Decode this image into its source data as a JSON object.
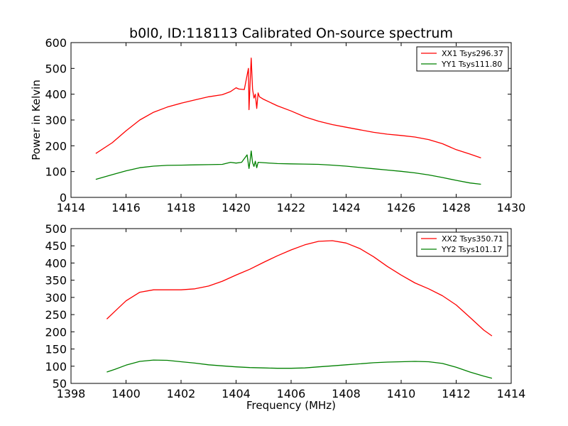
{
  "figure_title": "b0l0, ID:118113 Calibrated On-source spectrum",
  "colors": {
    "red": "#ff0000",
    "green": "#008000",
    "axes": "#000000",
    "background": "#ffffff"
  },
  "chart_data": [
    {
      "type": "line",
      "title": "b0l0, ID:118113 Calibrated On-source spectrum",
      "xlabel": "",
      "ylabel": "Power in Kelvin",
      "xlim": [
        1414,
        1430
      ],
      "ylim": [
        0,
        600
      ],
      "x_ticks": [
        "1414",
        "1416",
        "1418",
        "1420",
        "1422",
        "1424",
        "1426",
        "1428",
        "1430"
      ],
      "y_ticks": [
        "0",
        "100",
        "200",
        "300",
        "400",
        "500",
        "600"
      ],
      "grid": false,
      "legend": "top-right",
      "series": [
        {
          "name": "XX1 Tsys296.37",
          "color": "#ff0000",
          "x": [
            1414.9,
            1415.5,
            1416.0,
            1416.5,
            1417.0,
            1417.5,
            1418.0,
            1418.5,
            1419.0,
            1419.5,
            1419.8,
            1420.0,
            1420.1,
            1420.3,
            1420.45,
            1420.47,
            1420.5,
            1420.55,
            1420.6,
            1420.65,
            1420.7,
            1420.75,
            1420.8,
            1420.85,
            1421.0,
            1421.5,
            1422.0,
            1422.5,
            1423.0,
            1423.5,
            1424.0,
            1424.5,
            1425.0,
            1425.5,
            1426.0,
            1426.5,
            1427.0,
            1427.5,
            1428.0,
            1428.5,
            1428.9
          ],
          "y": [
            170,
            212,
            258,
            300,
            330,
            350,
            365,
            378,
            390,
            398,
            410,
            425,
            420,
            418,
            500,
            340,
            420,
            540,
            420,
            385,
            400,
            345,
            405,
            390,
            380,
            355,
            335,
            312,
            295,
            282,
            272,
            262,
            252,
            245,
            240,
            234,
            224,
            208,
            185,
            168,
            153
          ]
        },
        {
          "name": "YY1 Tsys111.80",
          "color": "#008000",
          "x": [
            1414.9,
            1415.5,
            1416.0,
            1416.5,
            1417.0,
            1417.5,
            1418.0,
            1418.5,
            1419.0,
            1419.5,
            1419.8,
            1420.0,
            1420.2,
            1420.4,
            1420.47,
            1420.5,
            1420.55,
            1420.6,
            1420.65,
            1420.7,
            1420.75,
            1420.8,
            1420.9,
            1421.5,
            1422.0,
            1422.5,
            1423.0,
            1423.5,
            1424.0,
            1424.5,
            1425.0,
            1425.5,
            1426.0,
            1426.5,
            1427.0,
            1427.5,
            1428.0,
            1428.5,
            1428.9
          ],
          "y": [
            70,
            88,
            103,
            115,
            121,
            124,
            125,
            126,
            127,
            128,
            136,
            133,
            136,
            165,
            112,
            135,
            180,
            135,
            120,
            140,
            115,
            136,
            135,
            131,
            130,
            129,
            128,
            125,
            121,
            116,
            111,
            106,
            101,
            95,
            87,
            77,
            66,
            56,
            51
          ]
        }
      ]
    },
    {
      "type": "line",
      "title": "",
      "xlabel": "Frequency (MHz)",
      "ylabel": "",
      "xlim": [
        1398,
        1414
      ],
      "ylim": [
        50,
        500
      ],
      "x_ticks": [
        "1398",
        "1400",
        "1402",
        "1404",
        "1406",
        "1408",
        "1410",
        "1412",
        "1414"
      ],
      "y_ticks": [
        "50",
        "100",
        "150",
        "200",
        "250",
        "300",
        "350",
        "400",
        "450",
        "500"
      ],
      "grid": false,
      "legend": "top-right",
      "series": [
        {
          "name": "XX2 Tsys350.71",
          "color": "#ff0000",
          "x": [
            1399.3,
            1399.6,
            1400.0,
            1400.5,
            1401.0,
            1401.5,
            1402.0,
            1402.5,
            1403.0,
            1403.5,
            1404.0,
            1404.5,
            1405.0,
            1405.5,
            1406.0,
            1406.5,
            1407.0,
            1407.5,
            1408.0,
            1408.5,
            1409.0,
            1409.5,
            1410.0,
            1410.5,
            1411.0,
            1411.5,
            1412.0,
            1412.5,
            1413.0,
            1413.3
          ],
          "y": [
            237,
            260,
            290,
            315,
            322,
            322,
            322,
            325,
            333,
            347,
            365,
            382,
            402,
            421,
            438,
            453,
            463,
            465,
            458,
            442,
            418,
            390,
            365,
            342,
            325,
            305,
            278,
            242,
            205,
            188
          ]
        },
        {
          "name": "YY2 Tsys101.17",
          "color": "#008000",
          "x": [
            1399.3,
            1399.6,
            1400.0,
            1400.5,
            1401.0,
            1401.5,
            1402.0,
            1402.5,
            1403.0,
            1403.5,
            1404.0,
            1404.5,
            1405.0,
            1405.5,
            1406.0,
            1406.5,
            1407.0,
            1407.5,
            1408.0,
            1408.5,
            1409.0,
            1409.5,
            1410.0,
            1410.5,
            1411.0,
            1411.5,
            1412.0,
            1412.5,
            1413.0,
            1413.3
          ],
          "y": [
            83,
            91,
            103,
            114,
            118,
            117,
            113,
            109,
            104,
            101,
            98,
            96,
            95,
            94,
            94,
            95,
            98,
            101,
            104,
            107,
            110,
            112,
            113,
            114,
            113,
            108,
            97,
            83,
            71,
            65
          ]
        }
      ]
    }
  ]
}
